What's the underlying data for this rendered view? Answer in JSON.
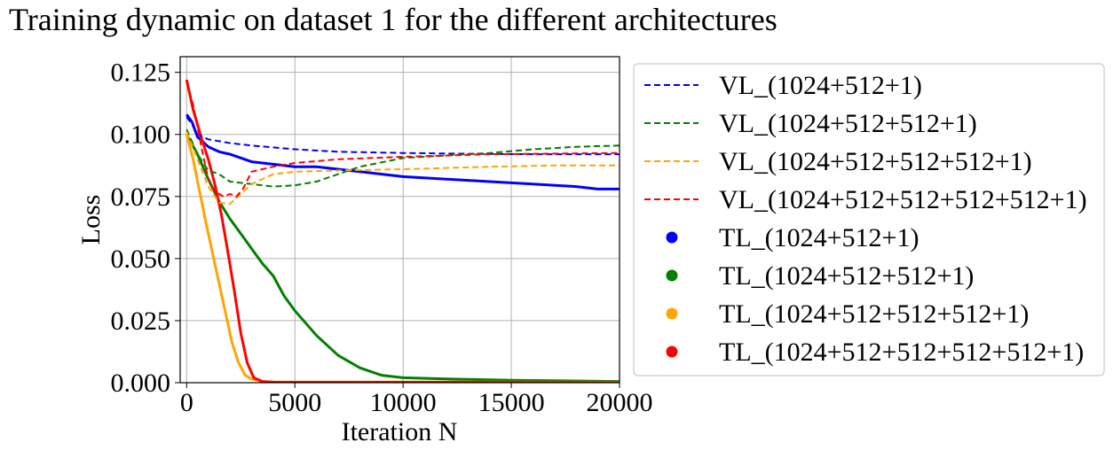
{
  "chart_data": {
    "type": "line",
    "title": "Training dynamic on dataset 1 for the different architectures",
    "xlabel": "Iteration N",
    "ylabel": "Loss",
    "xlim": [
      -300,
      20000
    ],
    "ylim": [
      0,
      0.1313
    ],
    "xticks": [
      0,
      5000,
      10000,
      15000,
      20000
    ],
    "xtick_labels": [
      "0",
      "5000",
      "10000",
      "15000",
      "20000"
    ],
    "yticks": [
      0,
      0.025,
      0.05,
      0.075,
      0.1,
      0.125
    ],
    "ytick_labels": [
      "0.000",
      "0.025",
      "0.050",
      "0.075",
      "0.100",
      "0.125"
    ],
    "grid": true,
    "legend_position": "outside-right",
    "series": [
      {
        "name": "VL_(1024+512+1)",
        "kind": "validation",
        "style": "dashed",
        "color": "#0000ff",
        "x": [
          0,
          250,
          500,
          1000,
          2000,
          3000,
          5000,
          7000,
          10000,
          13000,
          16000,
          18000,
          20000
        ],
        "y": [
          0.107,
          0.104,
          0.1,
          0.098,
          0.0965,
          0.0955,
          0.094,
          0.093,
          0.0925,
          0.0922,
          0.092,
          0.092,
          0.092
        ]
      },
      {
        "name": "VL_(1024+512+512+1)",
        "kind": "validation",
        "style": "dashed",
        "color": "#008000",
        "x": [
          0,
          500,
          1000,
          1500,
          2000,
          3000,
          4000,
          5000,
          6000,
          7000,
          8000,
          10000,
          12000,
          14000,
          16000,
          18000,
          20000
        ],
        "y": [
          0.102,
          0.092,
          0.0855,
          0.084,
          0.081,
          0.08,
          0.079,
          0.0795,
          0.081,
          0.084,
          0.087,
          0.0905,
          0.0915,
          0.0925,
          0.094,
          0.095,
          0.0955
        ]
      },
      {
        "name": "VL_(1024+512+512+512+1)",
        "kind": "validation",
        "style": "dashed",
        "color": "#ffa500",
        "x": [
          0,
          500,
          1000,
          1500,
          2000,
          2500,
          3000,
          4000,
          5000,
          7000,
          10000,
          14000,
          17000,
          20000
        ],
        "y": [
          0.101,
          0.09,
          0.079,
          0.0725,
          0.072,
          0.076,
          0.08,
          0.084,
          0.085,
          0.0855,
          0.086,
          0.087,
          0.0875,
          0.0875
        ]
      },
      {
        "name": "VL_(1024+512+512+512+512+1)",
        "kind": "validation",
        "style": "dashed",
        "color": "#ff0000",
        "x": [
          0,
          300,
          700,
          1000,
          1300,
          1700,
          2000,
          2300,
          2600,
          3000,
          4000,
          5000,
          7000,
          10000,
          14000,
          20000
        ],
        "y": [
          0.121,
          0.112,
          0.094,
          0.082,
          0.077,
          0.075,
          0.076,
          0.075,
          0.078,
          0.085,
          0.087,
          0.0885,
          0.09,
          0.091,
          0.092,
          0.0925
        ]
      },
      {
        "name": "TL_(1024+512+1)",
        "kind": "training",
        "style": "solid",
        "color": "#0000ff",
        "x": [
          0,
          250,
          500,
          1000,
          1500,
          2000,
          3000,
          4000,
          5000,
          6000,
          7000,
          8000,
          10000,
          12000,
          14000,
          16000,
          18000,
          19000,
          20000
        ],
        "y": [
          0.108,
          0.105,
          0.099,
          0.095,
          0.093,
          0.092,
          0.089,
          0.088,
          0.087,
          0.087,
          0.086,
          0.085,
          0.083,
          0.082,
          0.081,
          0.08,
          0.079,
          0.078,
          0.078
        ]
      },
      {
        "name": "TL_(1024+512+512+1)",
        "kind": "training",
        "style": "solid",
        "color": "#008000",
        "x": [
          0,
          500,
          1000,
          1500,
          2000,
          2500,
          3000,
          3500,
          4000,
          4500,
          5000,
          5500,
          6000,
          7000,
          8000,
          9000,
          10000,
          12000,
          15000,
          20000
        ],
        "y": [
          0.1,
          0.092,
          0.082,
          0.073,
          0.066,
          0.06,
          0.054,
          0.048,
          0.043,
          0.035,
          0.029,
          0.024,
          0.019,
          0.011,
          0.006,
          0.003,
          0.002,
          0.0015,
          0.001,
          0.0005
        ]
      },
      {
        "name": "TL_(1024+512+512+512+1)",
        "kind": "training",
        "style": "solid",
        "color": "#ffa500",
        "x": [
          0,
          300,
          600,
          900,
          1200,
          1500,
          1800,
          2100,
          2400,
          2700,
          3000,
          3500,
          4000,
          20000
        ],
        "y": [
          0.1,
          0.09,
          0.077,
          0.064,
          0.052,
          0.04,
          0.028,
          0.016,
          0.008,
          0.003,
          0.0015,
          0.0005,
          0.0003,
          0.0002
        ]
      },
      {
        "name": "TL_(1024+512+512+512+512+1)",
        "kind": "training",
        "style": "solid",
        "color": "#ff0000",
        "x": [
          0,
          300,
          700,
          1000,
          1300,
          1600,
          1900,
          2200,
          2500,
          2800,
          3100,
          3500,
          4000,
          20000
        ],
        "y": [
          0.122,
          0.11,
          0.098,
          0.09,
          0.08,
          0.068,
          0.053,
          0.037,
          0.02,
          0.008,
          0.002,
          0.0005,
          0.0002,
          0.0001
        ]
      }
    ]
  }
}
